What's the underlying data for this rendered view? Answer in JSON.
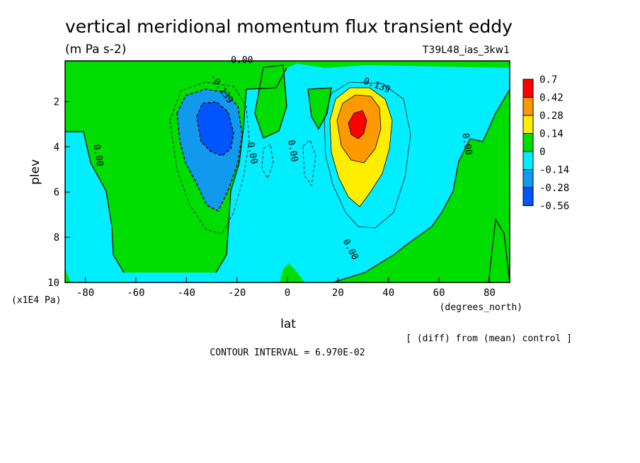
{
  "chart_data": {
    "type": "contour",
    "title": "vertical meridional momentum flux transient eddy",
    "units": "(m Pa s-2)",
    "experiment": "T39L48_ias_3kw1",
    "xlabel": "lat",
    "xunits": "(degrees_north)",
    "ylabel": "plev",
    "yunits": "(x1E4 Pa)",
    "xlim": [
      -88,
      88
    ],
    "ylim": [
      10,
      0.2
    ],
    "x_ticks": [
      -80,
      -60,
      -40,
      -20,
      0,
      20,
      40,
      60,
      80
    ],
    "y_ticks": [
      2,
      4,
      6,
      8,
      10
    ],
    "colorbar_levels": [
      "0.7",
      "0.42",
      "0.28",
      "0.14",
      "0",
      "-0.14",
      "-0.28",
      "-0.56"
    ],
    "colorbar_colors": [
      "#ff0000",
      "#ff9900",
      "#ffee00",
      "#00dd00",
      "#00eeff",
      "#1199ee",
      "#0055ff"
    ],
    "contour_labels": [
      {
        "text": "0.00",
        "lat": -76,
        "plev": 4.4
      },
      {
        "text": "0.00",
        "lat": -15,
        "plev": 4.3
      },
      {
        "text": "0.00",
        "lat": 1,
        "plev": 4.2
      },
      {
        "text": "0.00",
        "lat": 70,
        "plev": 3.9
      },
      {
        "text": "0.00",
        "lat": 24,
        "plev": 8.6
      },
      {
        "text": "0.00",
        "lat": -18,
        "plev": 0.3
      },
      {
        "text": "-0.139",
        "lat": -27,
        "plev": 1.5
      },
      {
        "text": "0.139",
        "lat": 35,
        "plev": 1.4
      }
    ],
    "note": "[ (diff) from (mean) control ]",
    "contour_interval_text": "CONTOUR INTERVAL = 6.970E-02"
  }
}
